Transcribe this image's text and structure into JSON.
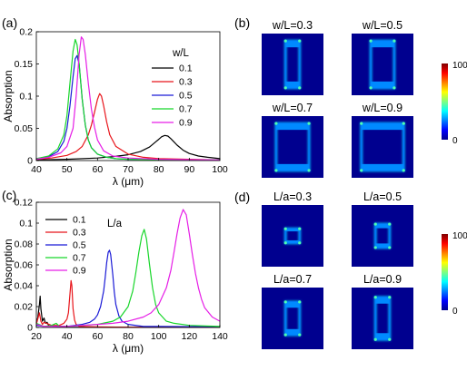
{
  "panel_labels": {
    "a": "(a)",
    "b": "(b)",
    "c": "(c)",
    "d": "(d)"
  },
  "chart_data": [
    {
      "panel": "(a)",
      "type": "line",
      "xlabel": "λ (μm)",
      "ylabel": "Absorption",
      "xlim": [
        40,
        100
      ],
      "ylim": [
        0,
        0.2
      ],
      "xticks": [
        "40",
        "50",
        "60",
        "70",
        "80",
        "90",
        "100"
      ],
      "yticks": [
        "0",
        "0.05",
        "0.1",
        "0.15",
        "0.2"
      ],
      "legend_title": "w/L",
      "legend_position": "right",
      "series": [
        {
          "name": "0.1",
          "color": "#000000",
          "x": [
            40,
            50,
            60,
            65,
            70,
            74,
            77,
            79,
            80,
            81,
            82,
            83,
            84,
            85,
            86,
            88,
            90,
            93,
            96,
            100
          ],
          "y": [
            0.001,
            0.002,
            0.004,
            0.006,
            0.009,
            0.014,
            0.021,
            0.029,
            0.033,
            0.037,
            0.039,
            0.038,
            0.034,
            0.029,
            0.024,
            0.016,
            0.011,
            0.007,
            0.005,
            0.003
          ]
        },
        {
          "name": "0.3",
          "color": "#e8151b",
          "x": [
            40,
            45,
            50,
            53,
            55,
            57,
            58,
            59,
            60,
            60.7,
            61.3,
            62,
            63,
            64,
            66,
            70,
            75,
            80,
            90,
            100
          ],
          "y": [
            0.002,
            0.004,
            0.008,
            0.014,
            0.022,
            0.04,
            0.055,
            0.075,
            0.095,
            0.104,
            0.1,
            0.085,
            0.06,
            0.04,
            0.022,
            0.01,
            0.005,
            0.003,
            0.002,
            0.001
          ]
        },
        {
          "name": "0.5",
          "color": "#1a1ad6",
          "x": [
            40,
            44,
            47,
            49,
            50,
            51,
            52,
            52.7,
            53.3,
            54,
            55,
            56,
            57,
            58,
            60,
            63,
            66,
            70,
            80,
            100
          ],
          "y": [
            0.003,
            0.006,
            0.014,
            0.03,
            0.05,
            0.085,
            0.13,
            0.158,
            0.163,
            0.15,
            0.095,
            0.055,
            0.032,
            0.02,
            0.01,
            0.005,
            0.003,
            0.002,
            0.001,
            0.001
          ]
        },
        {
          "name": "0.7",
          "color": "#17d62a",
          "x": [
            40,
            44,
            47,
            49,
            50,
            51,
            52,
            52.7,
            53.3,
            54,
            55,
            56,
            57,
            58,
            60,
            63,
            66,
            70,
            80,
            100
          ],
          "y": [
            0.003,
            0.007,
            0.018,
            0.04,
            0.07,
            0.12,
            0.17,
            0.188,
            0.18,
            0.15,
            0.095,
            0.055,
            0.032,
            0.02,
            0.01,
            0.005,
            0.003,
            0.002,
            0.001,
            0.001
          ]
        },
        {
          "name": "0.9",
          "color": "#e61ee6",
          "x": [
            40,
            44,
            48,
            50,
            52,
            53,
            54,
            54.7,
            55.3,
            56,
            57,
            58,
            59,
            60,
            62,
            65,
            70,
            80,
            100
          ],
          "y": [
            0.002,
            0.005,
            0.012,
            0.022,
            0.05,
            0.1,
            0.165,
            0.192,
            0.188,
            0.165,
            0.12,
            0.08,
            0.052,
            0.032,
            0.015,
            0.007,
            0.004,
            0.002,
            0.001
          ]
        }
      ]
    },
    {
      "panel": "(c)",
      "type": "line",
      "xlabel": "λ (μm)",
      "ylabel": "Absorption",
      "xlim": [
        20,
        140
      ],
      "ylim": [
        0,
        0.12
      ],
      "xticks": [
        "20",
        "40",
        "60",
        "80",
        "100",
        "120",
        "140"
      ],
      "yticks": [
        "0",
        "0.02",
        "0.04",
        "0.06",
        "0.08",
        "0.1",
        "0.12"
      ],
      "legend_title": "L/a",
      "legend_position": "top-left",
      "series": [
        {
          "name": "0.1",
          "color": "#000000",
          "x": [
            20,
            21,
            22,
            22.5,
            23,
            24,
            25,
            26,
            27,
            28,
            30,
            35,
            40,
            60,
            100,
            140
          ],
          "y": [
            0.004,
            0.01,
            0.022,
            0.03,
            0.018,
            0.006,
            0.009,
            0.004,
            0.005,
            0.002,
            0.001,
            0.0005,
            0.0003,
            0.0002,
            0.0001,
            0.0001
          ]
        },
        {
          "name": "0.3",
          "color": "#e8151b",
          "x": [
            20,
            22,
            23,
            24,
            25,
            30,
            35,
            38,
            40,
            41,
            42,
            42.7,
            43.2,
            44,
            45,
            46,
            48,
            50,
            60,
            80,
            140
          ],
          "y": [
            0.003,
            0.014,
            0.006,
            0.003,
            0.005,
            0.002,
            0.002,
            0.004,
            0.008,
            0.014,
            0.032,
            0.045,
            0.04,
            0.018,
            0.007,
            0.003,
            0.001,
            0.001,
            0.0005,
            0.0003,
            0.0001
          ]
        },
        {
          "name": "0.5",
          "color": "#1a1ad6",
          "x": [
            20,
            25,
            30,
            35,
            40,
            45,
            50,
            55,
            58,
            60,
            62,
            64,
            65,
            66,
            67,
            67.8,
            68.6,
            70,
            71,
            72,
            74,
            76,
            80,
            90,
            100,
            140
          ],
          "y": [
            0.002,
            0.001,
            0.001,
            0.001,
            0.001,
            0.002,
            0.003,
            0.005,
            0.008,
            0.012,
            0.02,
            0.035,
            0.048,
            0.062,
            0.072,
            0.074,
            0.07,
            0.05,
            0.034,
            0.022,
            0.011,
            0.006,
            0.003,
            0.001,
            0.001,
            0.0005
          ]
        },
        {
          "name": "0.7",
          "color": "#17d62a",
          "x": [
            20,
            25,
            30,
            33,
            35,
            40,
            50,
            60,
            70,
            75,
            80,
            83,
            85,
            87,
            89,
            90.5,
            92,
            94,
            96,
            98,
            100,
            105,
            110,
            120,
            140
          ],
          "y": [
            0.004,
            0.001,
            0.002,
            0.004,
            0.001,
            0.001,
            0.002,
            0.003,
            0.006,
            0.01,
            0.02,
            0.035,
            0.052,
            0.072,
            0.088,
            0.094,
            0.085,
            0.06,
            0.038,
            0.022,
            0.014,
            0.006,
            0.004,
            0.002,
            0.001
          ]
        },
        {
          "name": "0.9",
          "color": "#e61ee6",
          "x": [
            20,
            25,
            30,
            40,
            50,
            60,
            70,
            80,
            90,
            95,
            100,
            105,
            108,
            110,
            112,
            114,
            116,
            118,
            120,
            122,
            124,
            126,
            128,
            130,
            135,
            140
          ],
          "y": [
            0.003,
            0.001,
            0.001,
            0.001,
            0.002,
            0.003,
            0.004,
            0.006,
            0.01,
            0.014,
            0.022,
            0.038,
            0.055,
            0.072,
            0.09,
            0.105,
            0.113,
            0.108,
            0.09,
            0.07,
            0.052,
            0.038,
            0.027,
            0.019,
            0.01,
            0.006
          ]
        }
      ]
    },
    {
      "panel": "(b)",
      "type": "heatmap",
      "colorbar_ticks": [
        "100",
        "0"
      ],
      "maps": [
        {
          "label": "w/L=0.3",
          "w": 0.3,
          "l": 1.0
        },
        {
          "label": "w/L=0.5",
          "w": 0.5,
          "l": 1.0
        },
        {
          "label": "w/L=0.7",
          "w": 0.7,
          "l": 1.0
        },
        {
          "label": "w/L=0.9",
          "w": 0.9,
          "l": 1.0
        }
      ]
    },
    {
      "panel": "(d)",
      "type": "heatmap",
      "colorbar_ticks": [
        "100",
        "0"
      ],
      "maps": [
        {
          "label": "L/a=0.3",
          "w": 0.3,
          "l": 0.3
        },
        {
          "label": "L/a=0.5",
          "w": 0.3,
          "l": 0.5
        },
        {
          "label": "L/a=0.7",
          "w": 0.3,
          "l": 0.7
        },
        {
          "label": "L/a=0.9",
          "w": 0.3,
          "l": 0.9
        }
      ]
    }
  ]
}
